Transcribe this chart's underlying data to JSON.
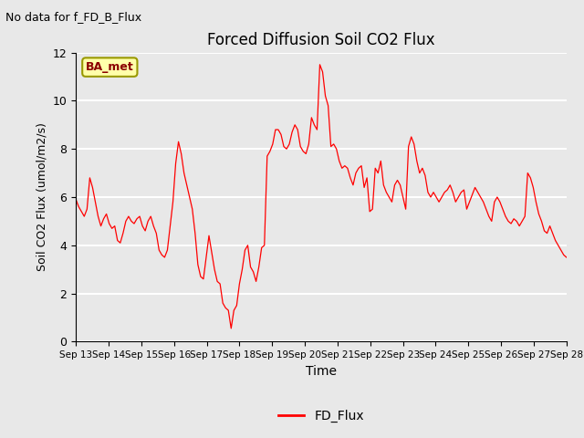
{
  "title": "Forced Diffusion Soil CO2 Flux",
  "no_data_text": "No data for f_FD_B_Flux",
  "xlabel": "Time",
  "ylabel": "Soil CO2 Flux (umol/m2/s)",
  "ylim": [
    0,
    12
  ],
  "legend_label": "FD_Flux",
  "line_color": "red",
  "bg_color": "#e8e8e8",
  "plot_bg_color": "#e8e8e8",
  "grid_color": "white",
  "annotation_box_color": "#ffffaa",
  "annotation_text": "BA_met",
  "annotation_text_color": "#8b0000",
  "annotation_box_edge_color": "#999900",
  "x_tick_labels": [
    "Sep 13",
    "Sep 14",
    "Sep 15",
    "Sep 16",
    "Sep 17",
    "Sep 18",
    "Sep 19",
    "Sep 20",
    "Sep 21",
    "Sep 22",
    "Sep 23",
    "Sep 24",
    "Sep 25",
    "Sep 26",
    "Sep 27",
    "Sep 28"
  ],
  "y_ticks": [
    0,
    2,
    4,
    6,
    8,
    10,
    12
  ],
  "flux_data": [
    5.9,
    5.6,
    5.4,
    5.2,
    5.5,
    6.8,
    6.4,
    5.8,
    5.2,
    4.8,
    5.1,
    5.3,
    4.9,
    4.7,
    4.8,
    4.2,
    4.1,
    4.5,
    5.0,
    5.2,
    5.0,
    4.9,
    5.1,
    5.2,
    4.8,
    4.6,
    5.0,
    5.2,
    4.8,
    4.5,
    3.8,
    3.6,
    3.5,
    3.8,
    4.8,
    5.8,
    7.4,
    8.3,
    7.8,
    7.0,
    6.5,
    6.0,
    5.5,
    4.5,
    3.2,
    2.7,
    2.6,
    3.5,
    4.4,
    3.7,
    3.0,
    2.5,
    2.4,
    1.6,
    1.4,
    1.3,
    0.55,
    1.3,
    1.5,
    2.4,
    3.0,
    3.8,
    4.0,
    3.1,
    2.9,
    2.5,
    3.1,
    3.9,
    4.0,
    7.7,
    7.9,
    8.2,
    8.8,
    8.8,
    8.6,
    8.1,
    8.0,
    8.2,
    8.7,
    9.0,
    8.8,
    8.1,
    7.9,
    7.8,
    8.2,
    9.3,
    9.0,
    8.8,
    11.5,
    11.2,
    10.2,
    9.8,
    8.1,
    8.2,
    8.0,
    7.5,
    7.2,
    7.3,
    7.2,
    6.8,
    6.5,
    7.0,
    7.2,
    7.3,
    6.4,
    6.8,
    5.4,
    5.5,
    7.2,
    7.0,
    7.5,
    6.5,
    6.2,
    6.0,
    5.8,
    6.5,
    6.7,
    6.5,
    6.0,
    5.5,
    8.1,
    8.5,
    8.2,
    7.5,
    7.0,
    7.2,
    6.9,
    6.2,
    6.0,
    6.2,
    6.0,
    5.8,
    6.0,
    6.2,
    6.3,
    6.5,
    6.2,
    5.8,
    6.0,
    6.2,
    6.3,
    5.5,
    5.8,
    6.1,
    6.4,
    6.2,
    6.0,
    5.8,
    5.5,
    5.2,
    5.0,
    5.8,
    6.0,
    5.8,
    5.5,
    5.2,
    5.0,
    4.9,
    5.1,
    5.0,
    4.8,
    5.0,
    5.2,
    7.0,
    6.8,
    6.4,
    5.8,
    5.3,
    5.0,
    4.6,
    4.5,
    4.8,
    4.5,
    4.2,
    4.0,
    3.8,
    3.6,
    3.5
  ]
}
